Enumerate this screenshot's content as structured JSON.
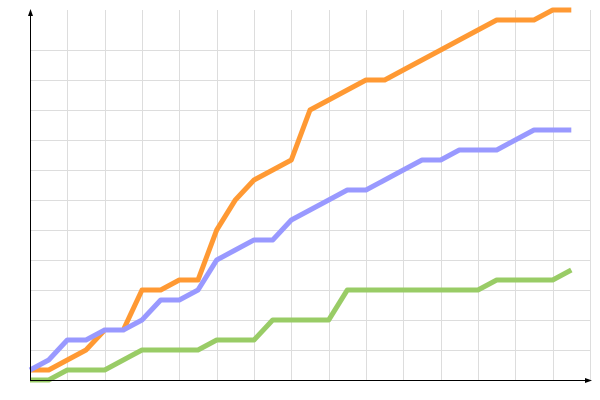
{
  "chart_data": {
    "type": "line",
    "title": "",
    "xlabel": "",
    "ylabel": "",
    "x": [
      0,
      1,
      2,
      3,
      4,
      5,
      6,
      7,
      8,
      9,
      10,
      11,
      12,
      13,
      14,
      15,
      16,
      17,
      18,
      19,
      20,
      21,
      22,
      23,
      24,
      25,
      26,
      27,
      28,
      29
    ],
    "xlim": [
      0,
      30
    ],
    "ylim": [
      0,
      37
    ],
    "grid": true,
    "x_grid_step": 2,
    "y_grid_step": 3,
    "legend": "none",
    "series": [
      {
        "color": "#ff9933",
        "values": [
          1,
          1,
          2,
          3,
          5,
          5,
          9,
          9,
          10,
          10,
          15,
          18,
          20,
          21,
          22,
          27,
          28,
          29,
          30,
          30,
          31,
          32,
          33,
          34,
          35,
          36,
          36,
          36,
          37,
          37
        ]
      },
      {
        "color": "#9999ff",
        "values": [
          1,
          2,
          4,
          4,
          5,
          5,
          6,
          8,
          8,
          9,
          12,
          13,
          14,
          14,
          16,
          17,
          18,
          19,
          19,
          20,
          21,
          22,
          22,
          23,
          23,
          23,
          24,
          25,
          25,
          25
        ]
      },
      {
        "color": "#99cc66",
        "values": [
          0,
          0,
          1,
          1,
          1,
          2,
          3,
          3,
          3,
          3,
          4,
          4,
          4,
          6,
          6,
          6,
          6,
          9,
          9,
          9,
          9,
          9,
          9,
          9,
          9,
          10,
          10,
          10,
          10,
          11
        ]
      }
    ],
    "colors": {
      "grid": "#dddddd",
      "axis": "#000000"
    }
  }
}
